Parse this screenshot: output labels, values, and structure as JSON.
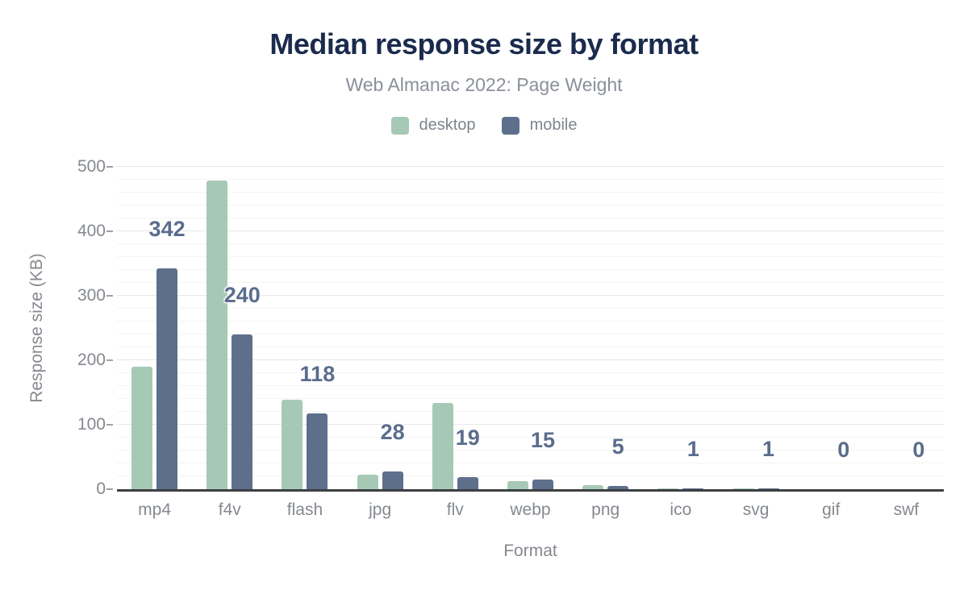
{
  "page": {
    "background": "#ffffff"
  },
  "header": {
    "title": "Median response size by format",
    "subtitle": "Web Almanac 2022: Page Weight"
  },
  "legend": {
    "position": "top",
    "items": [
      {
        "label": "desktop",
        "color": "#a5c9b5"
      },
      {
        "label": "mobile",
        "color": "#5d6f8b"
      }
    ]
  },
  "chart_data": {
    "type": "bar",
    "title": "Median response size by format",
    "subtitle": "Web Almanac 2022: Page Weight",
    "xlabel": "Format",
    "ylabel": "Response size (KB)",
    "ylim": [
      0,
      500
    ],
    "y_ticks": [
      0,
      100,
      200,
      300,
      400,
      500
    ],
    "minor_grid_step": 20,
    "grid": true,
    "legend_position": "top",
    "categories": [
      "mp4",
      "f4v",
      "flash",
      "jpg",
      "flv",
      "webp",
      "png",
      "ico",
      "svg",
      "gif",
      "swf"
    ],
    "series": [
      {
        "name": "desktop",
        "color": "#a5c9b5",
        "values": [
          190,
          479,
          139,
          22,
          134,
          12,
          6,
          1,
          1,
          0,
          0
        ]
      },
      {
        "name": "mobile",
        "color": "#5d6f8b",
        "values": [
          342,
          240,
          118,
          28,
          19,
          15,
          5,
          1,
          1,
          0,
          0
        ]
      }
    ],
    "bar_labels": {
      "labeled_series": "mobile",
      "values": [
        "342",
        "240",
        "118",
        "28",
        "19",
        "15",
        "5",
        "1",
        "1",
        "0",
        "0"
      ]
    },
    "colors": {
      "title": "#1b2b4d",
      "subtitle": "#8a8f9a",
      "axis_text": "#85898f",
      "legend_text": "#7e848e",
      "data_label": "#5a6d8c",
      "axis_line": "#3d3f42",
      "major_grid": "#e7e7e7",
      "minor_grid": "#f4f4f4"
    }
  }
}
